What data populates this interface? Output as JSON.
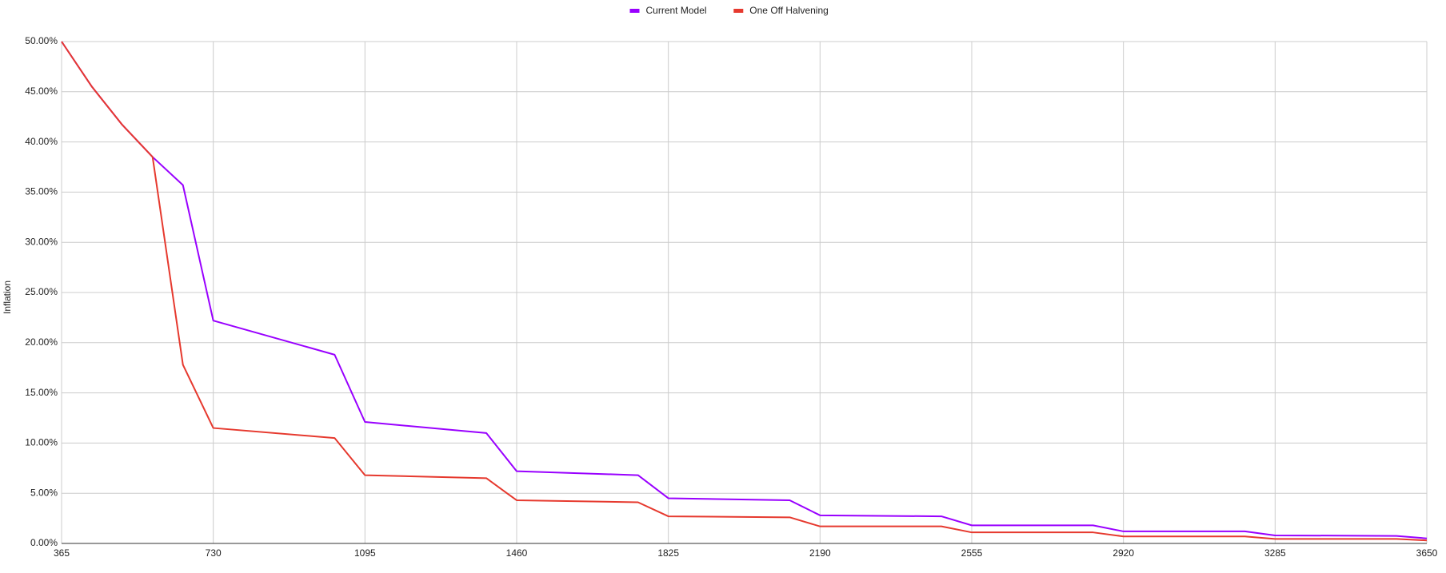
{
  "chart_data": {
    "type": "line",
    "y_label": "Inflation",
    "x": [
      365,
      438,
      511,
      584,
      657,
      730,
      1022,
      1095,
      1387,
      1460,
      1752,
      1825,
      2117,
      2190,
      2482,
      2555,
      2847,
      2920,
      3212,
      3285,
      3577,
      3650
    ],
    "series": [
      {
        "name": "Current Model",
        "color": "#9900ff",
        "values": [
          50,
          45.5,
          41.7,
          38.5,
          35.7,
          22.2,
          18.8,
          12.1,
          11.0,
          7.2,
          6.8,
          4.5,
          4.3,
          2.8,
          2.7,
          1.8,
          1.8,
          1.2,
          1.2,
          0.8,
          0.75,
          0.5
        ]
      },
      {
        "name": "One Off Halvening",
        "color": "#e6392e",
        "values": [
          50,
          45.5,
          41.7,
          38.5,
          17.8,
          11.5,
          10.5,
          6.8,
          6.5,
          4.3,
          4.1,
          2.7,
          2.6,
          1.7,
          1.7,
          1.1,
          1.1,
          0.7,
          0.7,
          0.45,
          0.45,
          0.3
        ]
      }
    ],
    "xlim": [
      365,
      3650
    ],
    "xticks": [
      365,
      730,
      1095,
      1460,
      1825,
      2190,
      2555,
      2920,
      3285,
      3650
    ],
    "ylim": [
      0,
      50
    ],
    "yticks": [
      {
        "value": 0,
        "label": "0.00%"
      },
      {
        "value": 5,
        "label": "5.00%"
      },
      {
        "value": 10,
        "label": "10.00%"
      },
      {
        "value": 15,
        "label": "15.00%"
      },
      {
        "value": 20,
        "label": "20.00%"
      },
      {
        "value": 25,
        "label": "25.00%"
      },
      {
        "value": 30,
        "label": "30.00%"
      },
      {
        "value": 35,
        "label": "35.00%"
      },
      {
        "value": 40,
        "label": "40.00%"
      },
      {
        "value": 45,
        "label": "45.00%"
      },
      {
        "value": 50,
        "label": "50.00%"
      }
    ],
    "grid": true,
    "legend": "top"
  }
}
